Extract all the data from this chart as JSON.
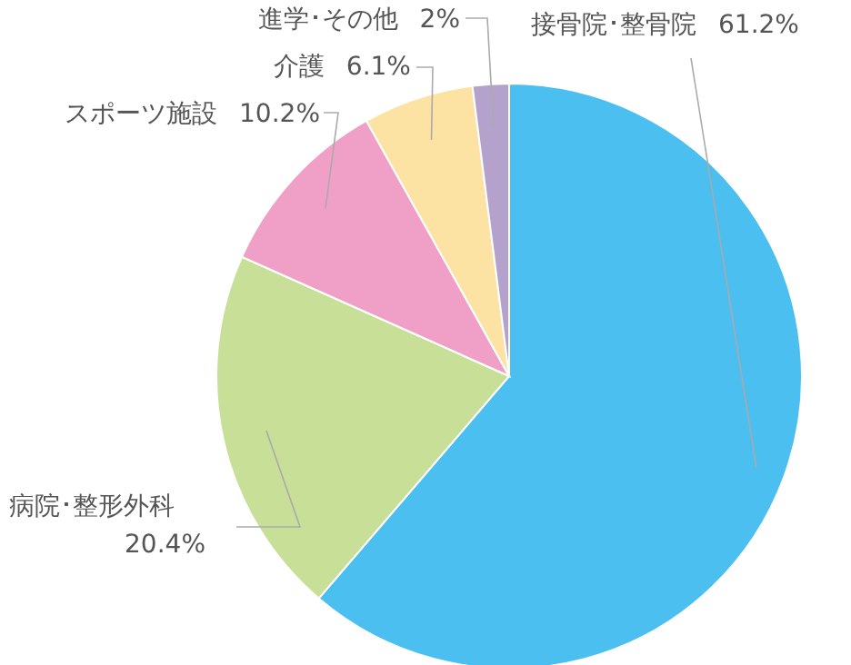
{
  "chart_data": {
    "type": "pie",
    "categories": [
      "接骨院･整骨院",
      "病院･整形外科",
      "スポーツ施設",
      "介護",
      "進学･その他"
    ],
    "values": [
      61.2,
      20.4,
      10.2,
      6.1,
      2
    ],
    "value_labels": [
      "61.2%",
      "20.4%",
      "10.2%",
      "6.1%",
      "2%"
    ],
    "colors": [
      "#4bbff0",
      "#c8df98",
      "#f0a0c6",
      "#fde3a3",
      "#b4a2cd"
    ]
  }
}
